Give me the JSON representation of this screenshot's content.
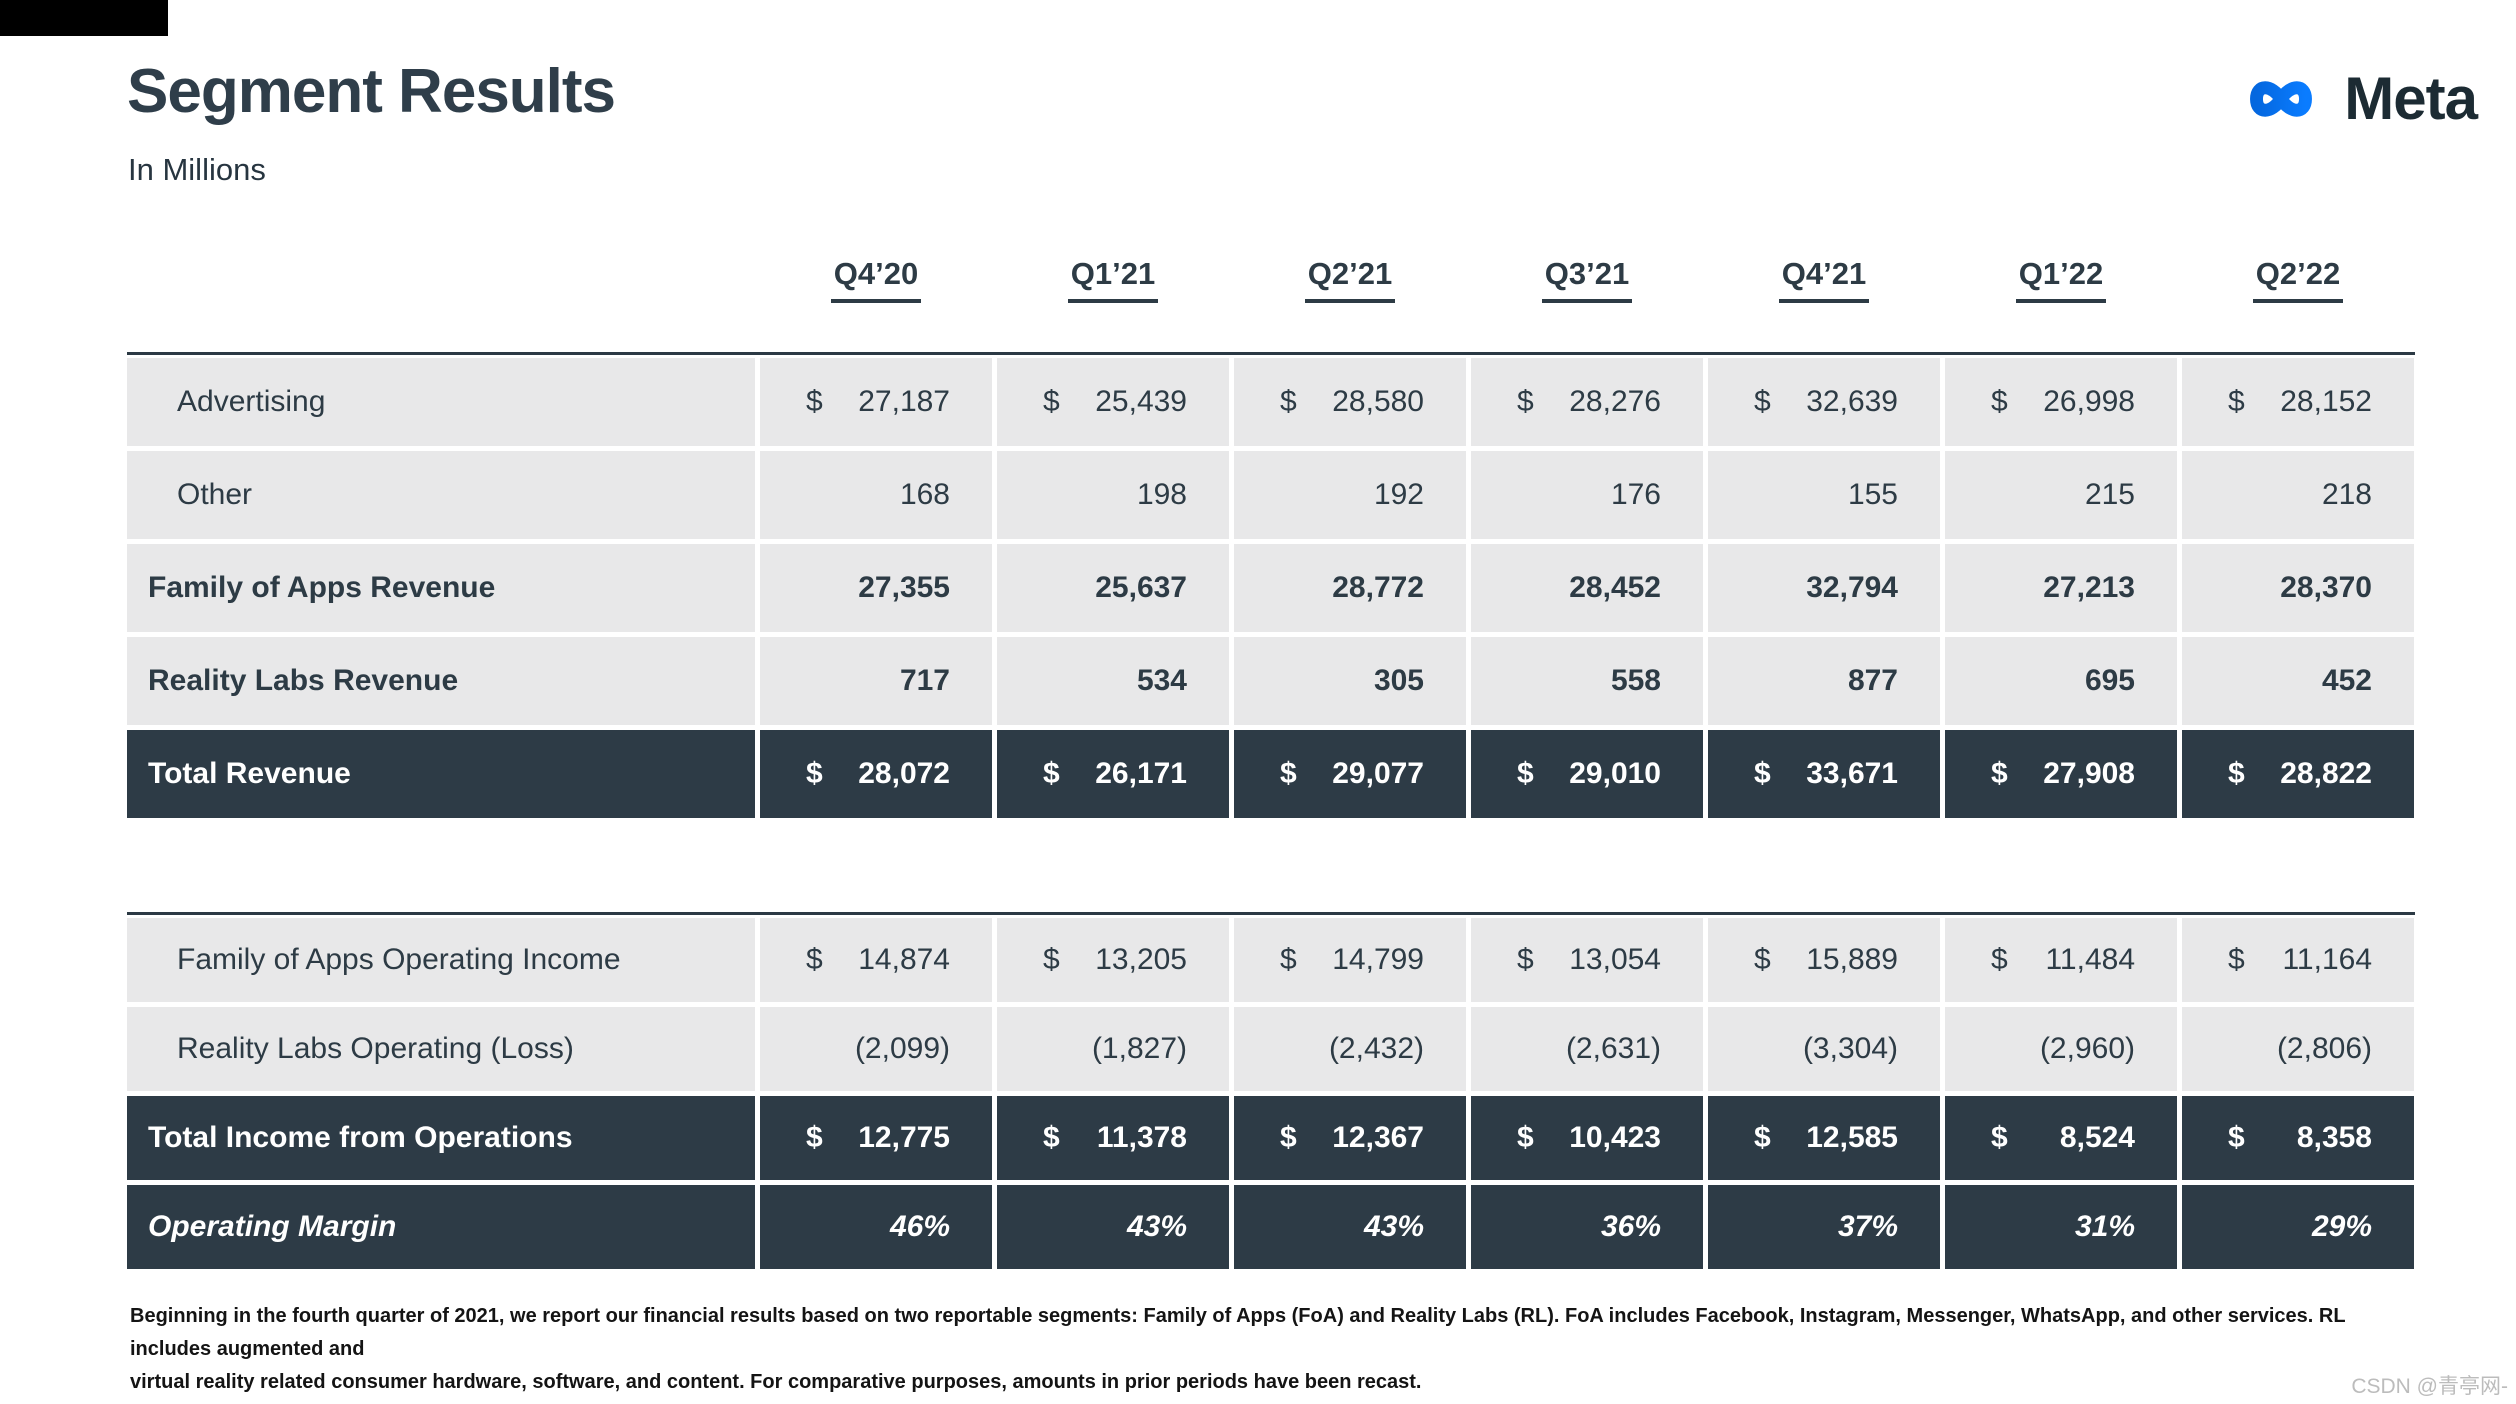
{
  "page": {
    "title": "Segment Results",
    "subtitle": "In Millions",
    "footnote_line1": "Beginning in the fourth quarter of 2021, we report our financial results based on two reportable segments: Family of Apps (FoA) and Reality Labs (RL). FoA includes Facebook, Instagram, Messenger, WhatsApp, and other services. RL includes augmented and",
    "footnote_line2": "virtual reality related consumer hardware, software, and content. For comparative purposes, amounts in prior periods have been recast.",
    "watermark": "CSDN @青亭网-"
  },
  "logo": {
    "text": "Meta",
    "icon": "meta-infinity-icon",
    "gradient_start": "#0467DF",
    "gradient_end": "#0A7CFF",
    "text_color": "#1C2B33"
  },
  "colors": {
    "dark_row_bg": "#2D3B46",
    "light_row_bg": "#E8E8E9",
    "text_dark": "#2D3B45",
    "header_underline": "#2D3B45"
  },
  "table": {
    "currency_symbol": "$",
    "columns": [
      "Q4’20",
      "Q1’21",
      "Q2’21",
      "Q3’21",
      "Q4’21",
      "Q1’22",
      "Q2’22"
    ],
    "sections": [
      {
        "name": "revenue",
        "rows": [
          {
            "label": "Advertising",
            "style": "regular",
            "indent": true,
            "dollar": true,
            "values": [
              "27,187",
              "25,439",
              "28,580",
              "28,276",
              "32,639",
              "26,998",
              "28,152"
            ]
          },
          {
            "label": "Other",
            "style": "regular",
            "indent": true,
            "dollar": false,
            "values": [
              "168",
              "198",
              "192",
              "176",
              "155",
              "215",
              "218"
            ]
          },
          {
            "label": "Family of Apps Revenue",
            "style": "bold",
            "indent": false,
            "dollar": false,
            "values": [
              "27,355",
              "25,637",
              "28,772",
              "28,452",
              "32,794",
              "27,213",
              "28,370"
            ]
          },
          {
            "label": "Reality Labs Revenue",
            "style": "bold",
            "indent": false,
            "dollar": false,
            "values": [
              "717",
              "534",
              "305",
              "558",
              "877",
              "695",
              "452"
            ]
          },
          {
            "label": "Total Revenue",
            "style": "total",
            "indent": false,
            "dollar": true,
            "values": [
              "28,072",
              "26,171",
              "29,077",
              "29,010",
              "33,671",
              "27,908",
              "28,822"
            ]
          }
        ]
      },
      {
        "name": "operating",
        "rows": [
          {
            "label": "Family of Apps Operating Income",
            "style": "regular",
            "indent": true,
            "dollar": true,
            "values": [
              "14,874",
              "13,205",
              "14,799",
              "13,054",
              "15,889",
              "11,484",
              "11,164"
            ]
          },
          {
            "label": "Reality Labs Operating (Loss)",
            "style": "regular",
            "indent": true,
            "dollar": false,
            "values": [
              "(2,099)",
              "(1,827)",
              "(2,432)",
              "(2,631)",
              "(3,304)",
              "(2,960)",
              "(2,806)"
            ]
          },
          {
            "label": "Total Income from Operations",
            "style": "total",
            "indent": false,
            "dollar": true,
            "values": [
              "12,775",
              "11,378",
              "12,367",
              "10,423",
              "12,585",
              "8,524",
              "8,358"
            ]
          },
          {
            "label": "Operating Margin",
            "style": "total_italic",
            "indent": false,
            "dollar": false,
            "values": [
              "46%",
              "43%",
              "43%",
              "36%",
              "37%",
              "31%",
              "29%"
            ]
          }
        ]
      }
    ]
  }
}
